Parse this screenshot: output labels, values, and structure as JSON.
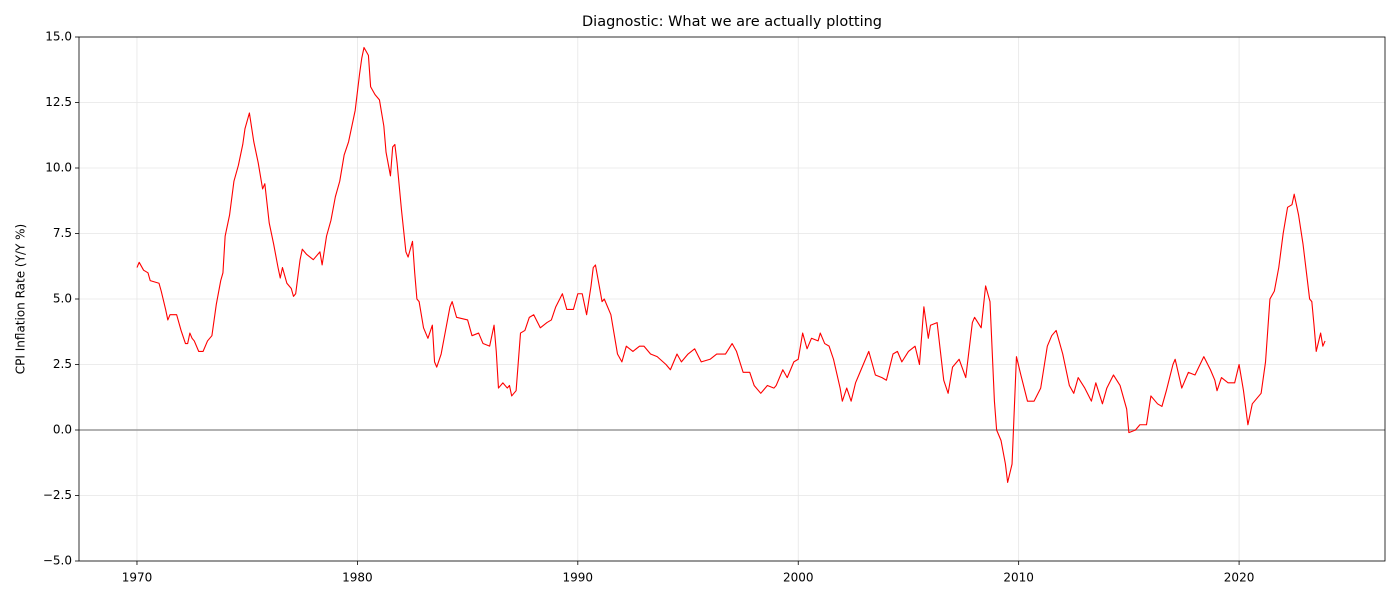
{
  "chart_data": {
    "type": "line",
    "title": "Diagnostic: What we are actually plotting",
    "y_label": "CPI Inflation Rate (Y/Y %)",
    "color": "#ff0000",
    "grid": true,
    "axhline": {
      "value": 0,
      "color": "#999999"
    },
    "xlim": [
      1967.37,
      2026.62
    ],
    "ylim": [
      -5,
      15
    ],
    "xticks": [
      1970,
      1980,
      1990,
      2000,
      2010,
      2020
    ],
    "yticks": [
      {
        "value": -5,
        "label": "−5.0"
      },
      {
        "value": -2.5,
        "label": "−2.5"
      },
      {
        "value": 0,
        "label": "0.0"
      },
      {
        "value": 2.5,
        "label": "2.5"
      },
      {
        "value": 5,
        "label": "5.0"
      },
      {
        "value": 7.5,
        "label": "7.5"
      },
      {
        "value": 10,
        "label": "10.0"
      },
      {
        "value": 12.5,
        "label": "12.5"
      },
      {
        "value": 15,
        "label": "15.0"
      }
    ],
    "x": [
      1970.0,
      1970.1,
      1970.3,
      1970.5,
      1970.6,
      1971.0,
      1971.1,
      1971.3,
      1971.4,
      1971.5,
      1971.8,
      1972.0,
      1972.2,
      1972.3,
      1972.4,
      1972.5,
      1972.6,
      1972.8,
      1973.0,
      1973.2,
      1973.4,
      1973.6,
      1973.8,
      1973.9,
      1974.0,
      1974.2,
      1974.4,
      1974.6,
      1974.8,
      1974.9,
      1975.0,
      1975.1,
      1975.3,
      1975.5,
      1975.7,
      1975.8,
      1976.0,
      1976.2,
      1976.4,
      1976.5,
      1976.6,
      1976.8,
      1977.0,
      1977.1,
      1977.2,
      1977.4,
      1977.5,
      1977.7,
      1978.0,
      1978.1,
      1978.3,
      1978.4,
      1978.6,
      1978.8,
      1979.0,
      1979.2,
      1979.4,
      1979.6,
      1979.8,
      1979.9,
      1980.1,
      1980.2,
      1980.3,
      1980.5,
      1980.6,
      1980.8,
      1981.0,
      1981.2,
      1981.3,
      1981.5,
      1981.6,
      1981.7,
      1981.8,
      1982.0,
      1982.2,
      1982.3,
      1982.5,
      1982.6,
      1982.7,
      1982.8,
      1983.0,
      1983.2,
      1983.4,
      1983.5,
      1983.6,
      1983.8,
      1984.0,
      1984.2,
      1984.3,
      1984.5,
      1985.0,
      1985.2,
      1985.5,
      1985.7,
      1986.0,
      1986.2,
      1986.3,
      1986.4,
      1986.6,
      1986.8,
      1986.9,
      1987.0,
      1987.2,
      1987.4,
      1987.6,
      1987.8,
      1988.0,
      1988.3,
      1988.6,
      1988.8,
      1989.0,
      1989.3,
      1989.5,
      1989.8,
      1990.0,
      1990.2,
      1990.4,
      1990.6,
      1990.7,
      1990.8,
      1991.1,
      1991.2,
      1991.5,
      1991.8,
      1992.0,
      1992.2,
      1992.5,
      1992.8,
      1993.0,
      1993.3,
      1993.6,
      1994.0,
      1994.2,
      1994.5,
      1994.7,
      1995.0,
      1995.3,
      1995.6,
      1996.0,
      1996.3,
      1996.7,
      1997.0,
      1997.2,
      1997.5,
      1997.8,
      1998.0,
      1998.3,
      1998.6,
      1998.9,
      1999.0,
      1999.3,
      1999.5,
      1999.8,
      2000.0,
      2000.2,
      2000.4,
      2000.6,
      2000.9,
      2001.0,
      2001.2,
      2001.4,
      2001.6,
      2001.9,
      2002.0,
      2002.2,
      2002.4,
      2002.6,
      2002.8,
      2003.0,
      2003.2,
      2003.5,
      2003.8,
      2004.0,
      2004.3,
      2004.5,
      2004.7,
      2005.0,
      2005.3,
      2005.5,
      2005.7,
      2005.9,
      2006.0,
      2006.3,
      2006.6,
      2006.8,
      2007.0,
      2007.3,
      2007.6,
      2007.9,
      2008.0,
      2008.3,
      2008.5,
      2008.7,
      2008.9,
      2009.0,
      2009.2,
      2009.4,
      2009.5,
      2009.7,
      2009.9,
      2010.1,
      2010.4,
      2010.7,
      2011.0,
      2011.3,
      2011.5,
      2011.7,
      2012.0,
      2012.3,
      2012.5,
      2012.7,
      2013.0,
      2013.3,
      2013.5,
      2013.8,
      2014.0,
      2014.3,
      2014.6,
      2014.9,
      2015.0,
      2015.3,
      2015.5,
      2015.8,
      2016.0,
      2016.3,
      2016.5,
      2016.7,
      2017.0,
      2017.1,
      2017.4,
      2017.7,
      2018.0,
      2018.4,
      2018.7,
      2018.9,
      2019.0,
      2019.2,
      2019.5,
      2019.8,
      2020.0,
      2020.2,
      2020.4,
      2020.6,
      2020.8,
      2021.0,
      2021.2,
      2021.4,
      2021.6,
      2021.8,
      2022.0,
      2022.2,
      2022.4,
      2022.5,
      2022.7,
      2022.9,
      2023.0,
      2023.2,
      2023.3,
      2023.4,
      2023.5,
      2023.7,
      2023.8,
      2023.9
    ],
    "values": [
      6.2,
      6.4,
      6.1,
      6.0,
      5.7,
      5.6,
      5.3,
      4.6,
      4.2,
      4.4,
      4.4,
      3.8,
      3.3,
      3.3,
      3.7,
      3.5,
      3.4,
      3.0,
      3.0,
      3.4,
      3.6,
      4.8,
      5.7,
      6.0,
      7.4,
      8.2,
      9.5,
      10.1,
      10.9,
      11.5,
      11.8,
      12.1,
      11.0,
      10.2,
      9.2,
      9.4,
      7.9,
      7.1,
      6.2,
      5.8,
      6.2,
      5.6,
      5.4,
      5.1,
      5.2,
      6.5,
      6.9,
      6.7,
      6.5,
      6.6,
      6.8,
      6.3,
      7.4,
      8.0,
      8.9,
      9.5,
      10.5,
      11.0,
      11.8,
      12.2,
      13.6,
      14.2,
      14.6,
      14.3,
      13.1,
      12.8,
      12.6,
      11.6,
      10.6,
      9.7,
      10.8,
      10.9,
      10.2,
      8.4,
      6.8,
      6.6,
      7.2,
      6.0,
      5.0,
      4.9,
      3.9,
      3.5,
      4.0,
      2.6,
      2.4,
      2.9,
      3.8,
      4.7,
      4.9,
      4.3,
      4.2,
      3.6,
      3.7,
      3.3,
      3.2,
      4.0,
      3.0,
      1.6,
      1.8,
      1.6,
      1.7,
      1.3,
      1.5,
      3.7,
      3.8,
      4.3,
      4.4,
      3.9,
      4.1,
      4.2,
      4.7,
      5.2,
      4.6,
      4.6,
      5.2,
      5.2,
      4.4,
      5.5,
      6.2,
      6.3,
      4.9,
      5.0,
      4.4,
      2.9,
      2.6,
      3.2,
      3.0,
      3.2,
      3.2,
      2.9,
      2.8,
      2.5,
      2.3,
      2.9,
      2.6,
      2.9,
      3.1,
      2.6,
      2.7,
      2.9,
      2.9,
      3.3,
      3.0,
      2.2,
      2.2,
      1.7,
      1.4,
      1.7,
      1.6,
      1.7,
      2.3,
      2.0,
      2.6,
      2.7,
      3.7,
      3.1,
      3.5,
      3.4,
      3.7,
      3.3,
      3.2,
      2.7,
      1.6,
      1.1,
      1.6,
      1.1,
      1.8,
      2.2,
      2.6,
      3.0,
      2.1,
      2.0,
      1.9,
      2.9,
      3.0,
      2.6,
      3.0,
      3.2,
      2.5,
      4.7,
      3.5,
      4.0,
      4.1,
      1.9,
      1.4,
      2.4,
      2.7,
      2.0,
      4.1,
      4.3,
      3.9,
      5.5,
      4.9,
      1.1,
      0.0,
      -0.4,
      -1.3,
      -2.0,
      -1.3,
      2.8,
      2.1,
      1.1,
      1.1,
      1.6,
      3.2,
      3.6,
      3.8,
      2.9,
      1.7,
      1.4,
      2.0,
      1.6,
      1.1,
      1.8,
      1.0,
      1.6,
      2.1,
      1.7,
      0.8,
      -0.1,
      0.0,
      0.2,
      0.2,
      1.3,
      1.0,
      0.9,
      1.5,
      2.5,
      2.7,
      1.6,
      2.2,
      2.1,
      2.8,
      2.3,
      1.9,
      1.5,
      2.0,
      1.8,
      1.8,
      2.5,
      1.5,
      0.2,
      1.0,
      1.2,
      1.4,
      2.6,
      5.0,
      5.3,
      6.2,
      7.5,
      8.5,
      8.6,
      9.0,
      8.2,
      7.1,
      6.4,
      5.0,
      4.9,
      4.0,
      3.0,
      3.7,
      3.2,
      3.4
    ]
  }
}
